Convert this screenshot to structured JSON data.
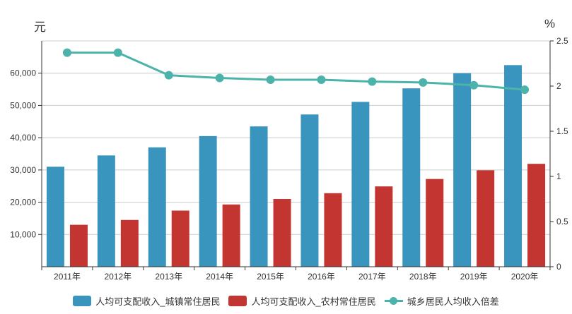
{
  "chart_data": {
    "type": "bar",
    "categories": [
      "2011年",
      "2012年",
      "2013年",
      "2014年",
      "2015年",
      "2016年",
      "2017年",
      "2018年",
      "2019年",
      "2020年"
    ],
    "left_axis": {
      "unit": "元",
      "ylim": [
        0,
        70000
      ],
      "ticks": [
        10000,
        20000,
        30000,
        40000,
        50000,
        60000
      ],
      "tick_labels": [
        "10,000",
        "20,000",
        "30,000",
        "40,000",
        "50,000",
        "60,000"
      ]
    },
    "right_axis": {
      "unit": "%",
      "ylim": [
        0,
        2.5
      ],
      "ticks": [
        0,
        0.5,
        1,
        1.5,
        2,
        2.5
      ],
      "tick_labels": [
        "0",
        "0.5",
        "1",
        "1.5",
        "2",
        "2.5"
      ]
    },
    "series": [
      {
        "name": "人均可支配收入_城镇常住居民",
        "type": "bar",
        "axis": "left",
        "color": "#3a95be",
        "values": [
          31000,
          34500,
          37000,
          40500,
          43500,
          47200,
          51100,
          55300,
          60000,
          62500
        ]
      },
      {
        "name": "人均可支配收入_农村常住居民",
        "type": "bar",
        "axis": "left",
        "color": "#c33531",
        "values": [
          13000,
          14500,
          17400,
          19300,
          21000,
          22800,
          24900,
          27200,
          29900,
          31900
        ]
      },
      {
        "name": "城乡居民人均收入倍差",
        "type": "line",
        "axis": "right",
        "color": "#4cb3aa",
        "values": [
          2.37,
          2.37,
          2.12,
          2.09,
          2.07,
          2.07,
          2.05,
          2.04,
          2.01,
          1.96
        ]
      }
    ],
    "grid": true,
    "legend": "bottom-center"
  }
}
